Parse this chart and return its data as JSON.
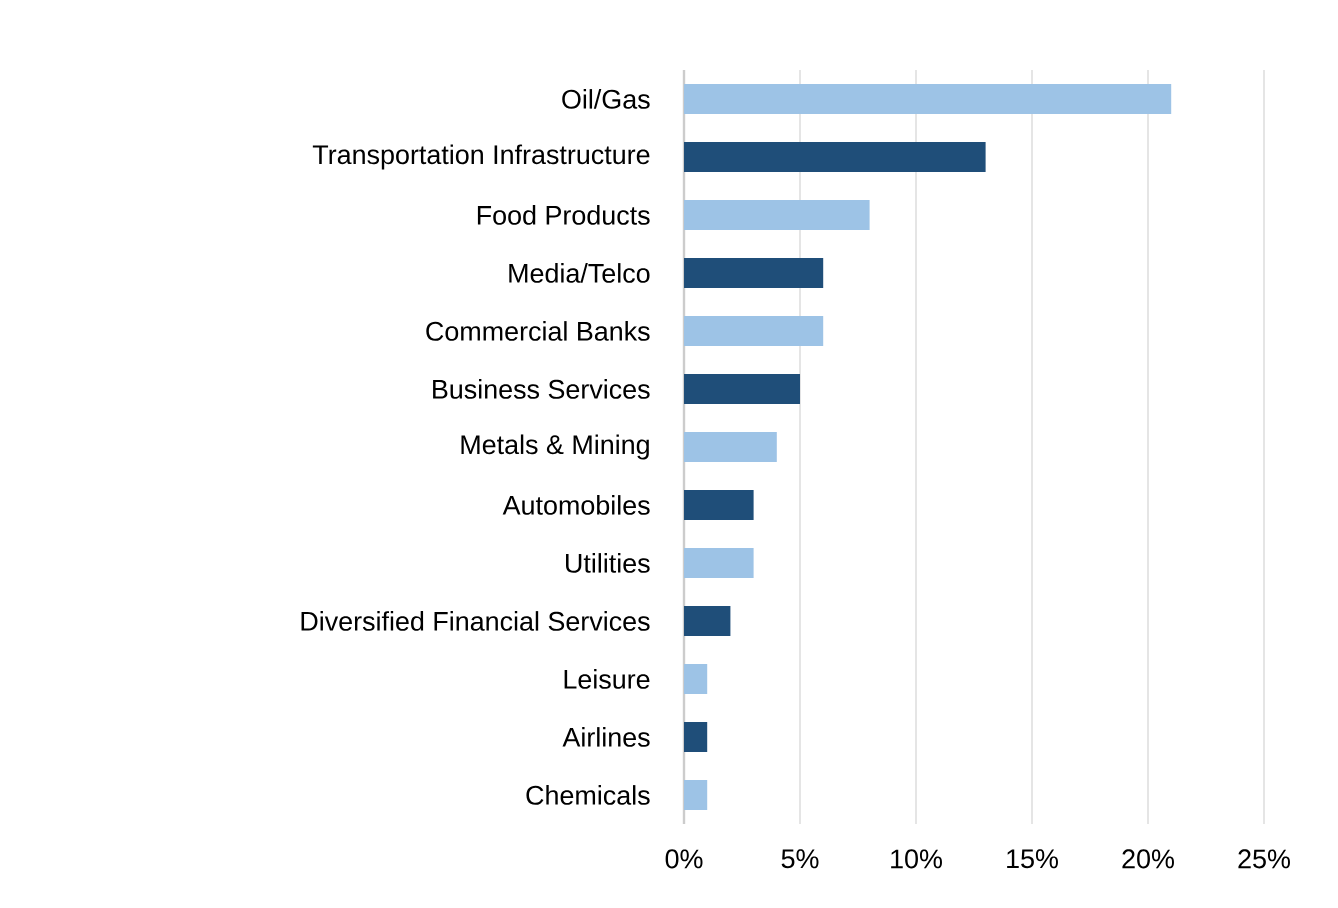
{
  "chart_data": {
    "type": "bar",
    "orientation": "horizontal",
    "categories": [
      "Oil/Gas",
      "Transportation Infrastructure",
      "Food Products",
      "Media/Telco",
      "Commercial Banks",
      "Business Services",
      "Metals & Mining",
      "Automobiles",
      "Utilities",
      "Diversified Financial Services",
      "Leisure",
      "Airlines",
      "Chemicals"
    ],
    "values": [
      21,
      13,
      8,
      6,
      6,
      5,
      4,
      3,
      3,
      2,
      1,
      1,
      1
    ],
    "colors": [
      "#9dc3e6",
      "#1f4e79",
      "#9dc3e6",
      "#1f4e79",
      "#9dc3e6",
      "#1f4e79",
      "#9dc3e6",
      "#1f4e79",
      "#9dc3e6",
      "#1f4e79",
      "#9dc3e6",
      "#1f4e79",
      "#9dc3e6"
    ],
    "xlim": [
      0,
      25
    ],
    "xticks": [
      {
        "value": 0,
        "label": "0%"
      },
      {
        "value": 5,
        "label": "5%"
      },
      {
        "value": 10,
        "label": "10%"
      },
      {
        "value": 15,
        "label": "15%"
      },
      {
        "value": 20,
        "label": "20%"
      },
      {
        "value": 25,
        "label": "25%"
      }
    ],
    "grid": "x"
  }
}
